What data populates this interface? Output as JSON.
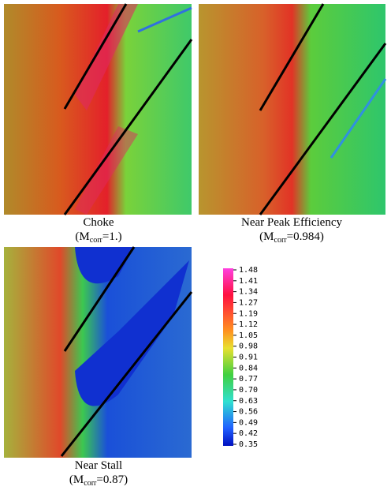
{
  "panels": [
    {
      "label": "Choke",
      "condition": {
        "symbol": "M",
        "subscript": "corr",
        "rest": "=1.)",
        "open": "("
      }
    },
    {
      "label": "Near Peak Efficiency",
      "condition": {
        "symbol": "M",
        "subscript": "corr",
        "rest": "=0.984)",
        "open": "("
      }
    },
    {
      "label": "Near Stall",
      "condition": {
        "symbol": "M",
        "subscript": "corr",
        "rest": "=0.87)",
        "open": "("
      }
    }
  ],
  "colorbar": {
    "labels": [
      "1.48",
      "1.41",
      "1.34",
      "1.27",
      "1.19",
      "1.12",
      "1.05",
      "0.98",
      "0.91",
      "0.84",
      "0.77",
      "0.70",
      "0.63",
      "0.56",
      "0.49",
      "0.42",
      "0.35"
    ]
  }
}
